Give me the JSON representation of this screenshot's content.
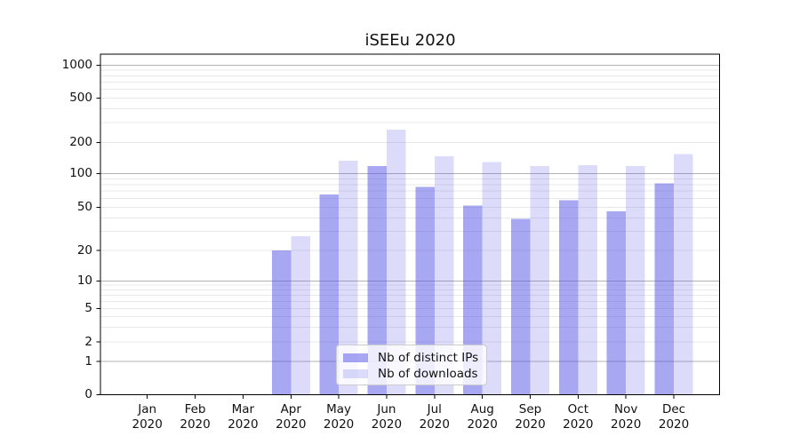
{
  "chart_data": {
    "type": "bar",
    "title": "iSEEu 2020",
    "categories": [
      "Jan 2020",
      "Feb 2020",
      "Mar 2020",
      "Apr 2020",
      "May 2020",
      "Jun 2020",
      "Jul 2020",
      "Aug 2020",
      "Sep 2020",
      "Oct 2020",
      "Nov 2020",
      "Dec 2020"
    ],
    "series": [
      {
        "name": "Nb of distinct IPs",
        "color": "rgba(80,80,230,0.5)",
        "values": [
          null,
          null,
          null,
          20,
          65,
          118,
          76,
          52,
          39,
          58,
          46,
          82
        ]
      },
      {
        "name": "Nb of downloads",
        "color": "rgba(80,80,230,0.2)",
        "values": [
          null,
          null,
          null,
          27,
          133,
          260,
          147,
          129,
          118,
          121,
          119,
          155
        ]
      }
    ],
    "y_scale": "symlog",
    "y_ticks": [
      0,
      1,
      2,
      5,
      10,
      20,
      50,
      100,
      200,
      500,
      1000
    ],
    "ylim": [
      0,
      1000
    ],
    "xlabel": "",
    "ylabel": "",
    "grid": true,
    "legend_position": "lower center"
  }
}
